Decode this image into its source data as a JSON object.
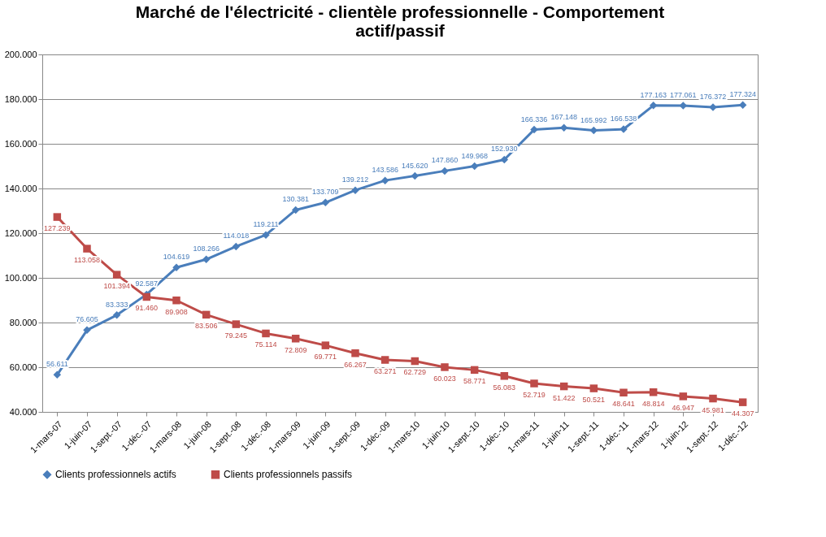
{
  "chart_data": {
    "type": "line",
    "title": "Marché de l'électricité - clientèle professionnelle - Comportement actif/passif",
    "categories": [
      "1-mars-07",
      "1-juin-07",
      "1-sept.-07",
      "1-déc.-07",
      "1-mars-08",
      "1-juin-08",
      "1-sept.-08",
      "1-déc.-08",
      "1-mars-09",
      "1-juin-09",
      "1-sept.-09",
      "1-déc.-09",
      "1-mars-10",
      "1-juin-10",
      "1-sept.-10",
      "1-déc.-10",
      "1-mars-11",
      "1-juin-11",
      "1-sept.-11",
      "1-déc.-11",
      "1-mars-12",
      "1-juin-12",
      "1-sept.-12",
      "1-déc.-12"
    ],
    "series": [
      {
        "name": "Clients professionnels actifs",
        "color": "#4a7ebb",
        "marker": "diamond",
        "values": [
          56611,
          76605,
          83333,
          92587,
          104619,
          108266,
          114018,
          119211,
          130381,
          133709,
          139212,
          143586,
          145620,
          147860,
          149968,
          152930,
          166336,
          167148,
          165992,
          166538,
          177163,
          177061,
          176372,
          177324
        ],
        "value_labels": [
          "56.611",
          "76.605",
          "83.333",
          "92.587",
          "104.619",
          "108.266",
          "114.018",
          "119.211",
          "130.381",
          "133.709",
          "139.212",
          "143.586",
          "145.620",
          "147.860",
          "149.968",
          "152.930",
          "166.336",
          "167.148",
          "165.992",
          "166.538",
          "177.163",
          "177.061",
          "176.372",
          "177.324"
        ]
      },
      {
        "name": "Clients professionnels passifs",
        "color": "#be4b48",
        "marker": "square",
        "values": [
          127239,
          113058,
          101394,
          91460,
          89908,
          83506,
          79245,
          75114,
          72809,
          69771,
          66267,
          63271,
          62729,
          60023,
          58771,
          56083,
          52719,
          51422,
          50521,
          48641,
          48814,
          46947,
          45981,
          44307
        ],
        "value_labels": [
          "127.239",
          "113.058",
          "101.394",
          "91.460",
          "89.908",
          "83.506",
          "79.245",
          "75.114",
          "72.809",
          "69.771",
          "66.267",
          "63.271",
          "62.729",
          "60.023",
          "58.771",
          "56.083",
          "52.719",
          "51.422",
          "50.521",
          "48.641",
          "48.814",
          "46.947",
          "45.981",
          "44.307"
        ]
      }
    ],
    "ylim": [
      40000,
      200000
    ],
    "yticks": [
      {
        "value": 40000,
        "label": "40.000"
      },
      {
        "value": 60000,
        "label": "60.000"
      },
      {
        "value": 80000,
        "label": "80.000"
      },
      {
        "value": 100000,
        "label": "100.000"
      },
      {
        "value": 120000,
        "label": "120.000"
      },
      {
        "value": 140000,
        "label": "140.000"
      },
      {
        "value": 160000,
        "label": "160.000"
      },
      {
        "value": 180000,
        "label": "180.000"
      },
      {
        "value": 200000,
        "label": "200.000"
      }
    ],
    "grid": "y",
    "legend": "bottom",
    "line_style": "solid"
  }
}
